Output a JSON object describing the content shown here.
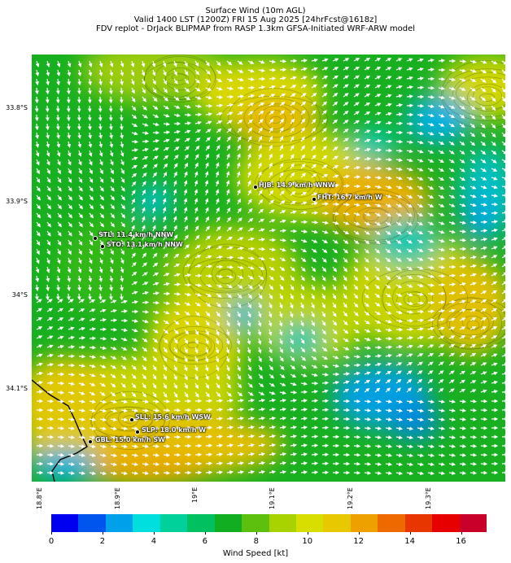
{
  "title": {
    "line1": "Surface Wind (10m AGL)",
    "line2": "Valid 1400 LST (1200Z) FRI 15 Aug 2025 [24hrFcst@1618z]",
    "line3": "FDV replot - DrJack BLIPMAP from RASP 1.3km GFSA-Initiated WRF-ARW model"
  },
  "map": {
    "lat_labels": [
      "33.8°S",
      "33.9°S",
      "34°S",
      "34.1°S"
    ],
    "lon_labels": [
      "18.8°E",
      "18.9°E",
      "19°E",
      "19.1°E",
      "19.2°E",
      "19.3°E"
    ],
    "sites": [
      {
        "id": "hjb",
        "label": "HJB: 14.9 km/h WNW"
      },
      {
        "id": "fht",
        "label": "FHT: 16.7 km/h W"
      },
      {
        "id": "stl",
        "label": "STL: 11.4 km/h NNW"
      },
      {
        "id": "sto",
        "label": "STO: 13.1 km/h NNW"
      },
      {
        "id": "sll",
        "label": "SLL: 15.6 km/h WSW"
      },
      {
        "id": "slp",
        "label": "SLP: 18.0 km/h W"
      },
      {
        "id": "gbl",
        "label": "GBL: 15.0 km/h SW"
      }
    ]
  },
  "colorbar": {
    "label": "Wind Speed [kt]",
    "ticks": [
      "0",
      "2",
      "4",
      "6",
      "8",
      "10",
      "12",
      "14",
      "16"
    ],
    "colors": [
      "#0000f0",
      "#0055ee",
      "#00a0ea",
      "#00dede",
      "#00d09a",
      "#00c060",
      "#10ae20",
      "#5ec00e",
      "#a8d200",
      "#d8de00",
      "#e8c800",
      "#eea000",
      "#ee6a00",
      "#e83600",
      "#e60000",
      "#c8002a"
    ]
  }
}
